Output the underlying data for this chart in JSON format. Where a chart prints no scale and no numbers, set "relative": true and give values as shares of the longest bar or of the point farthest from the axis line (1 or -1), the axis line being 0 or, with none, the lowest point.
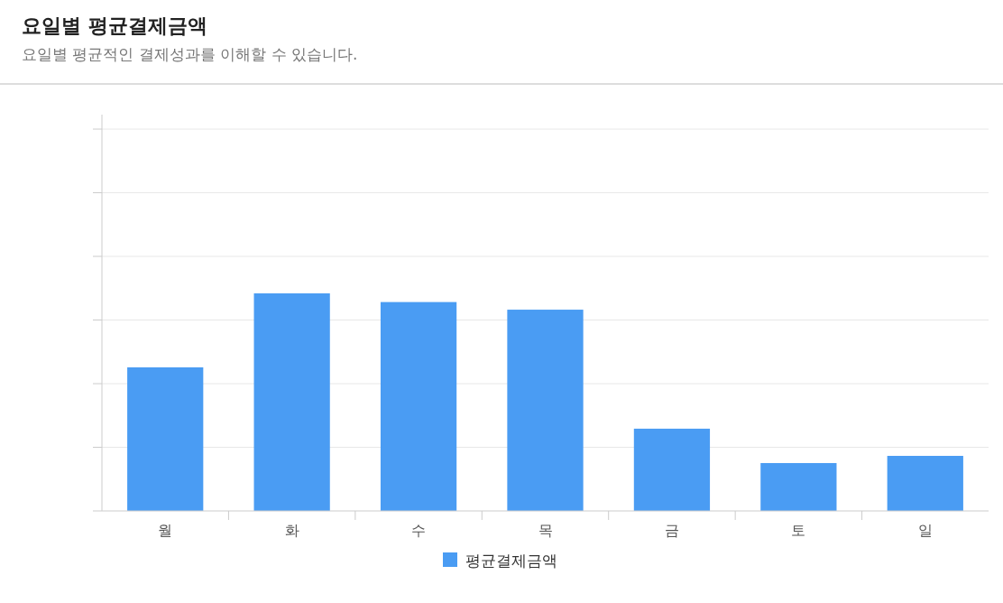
{
  "chart_data": {
    "type": "bar",
    "title": "요일별 평균결제금액",
    "subtitle": "요일별 평균적인 결제성과를 이해할 수 있습니다.",
    "categories": [
      "월",
      "화",
      "수",
      "목",
      "금",
      "토",
      "일"
    ],
    "series": [
      {
        "name": "평균결제금액",
        "color": "#4a9cf3",
        "values": [
          0.66,
          1,
          0.96,
          0.925,
          0.378,
          0.22,
          0.253
        ]
      }
    ],
    "relative": true,
    "grid": "y",
    "legend": "bottom"
  }
}
